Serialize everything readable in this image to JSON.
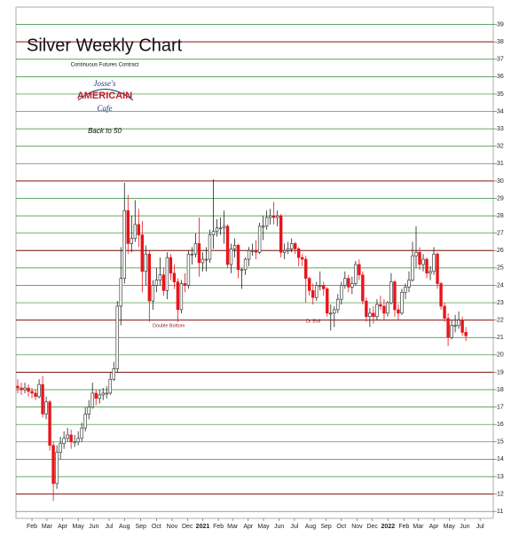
{
  "chart_data": {
    "type": "candlestick",
    "title": "Silver Weekly Chart",
    "subtitle": "Continuous Futures Contract",
    "logo": {
      "line1": "Josse's",
      "line2": "AMERICAIN",
      "line3": "Cafe"
    },
    "note": "Back to 50",
    "annotations": [
      "Double Bottom",
      "Dr Evil"
    ],
    "up_color": "#ffffff",
    "down_color": "#e8141b",
    "grid_color": "#2e8b2e",
    "red_color": "#8b1a1a",
    "grid": true,
    "red_levels": [
      38,
      30,
      26,
      22,
      19,
      12
    ],
    "ylim": [
      10.6,
      40
    ],
    "yticks": [
      11,
      12,
      13,
      14,
      15,
      16,
      17,
      18,
      19,
      20,
      21,
      22,
      23,
      24,
      25,
      26,
      27,
      28,
      29,
      30,
      31,
      32,
      33,
      34,
      35,
      36,
      37,
      38,
      39
    ],
    "xlim": [
      -0.5,
      133.7
    ],
    "xticks": [
      {
        "value": 4,
        "label": "Feb"
      },
      {
        "value": 8.2,
        "label": "Mar"
      },
      {
        "value": 12.6,
        "label": "Apr"
      },
      {
        "value": 17,
        "label": "May"
      },
      {
        "value": 21.4,
        "label": "Jun"
      },
      {
        "value": 25.7,
        "label": "Jul"
      },
      {
        "value": 30,
        "label": "Aug"
      },
      {
        "value": 34.6,
        "label": "Sep"
      },
      {
        "value": 39,
        "label": "Oct"
      },
      {
        "value": 43.4,
        "label": "Nov"
      },
      {
        "value": 47.7,
        "label": "Dec"
      },
      {
        "value": 52,
        "label": "2021"
      },
      {
        "value": 56.4,
        "label": "Feb"
      },
      {
        "value": 60.4,
        "label": "Mar"
      },
      {
        "value": 64.8,
        "label": "Apr"
      },
      {
        "value": 69.1,
        "label": "May"
      },
      {
        "value": 73.5,
        "label": "Jun"
      },
      {
        "value": 77.8,
        "label": "Jul"
      },
      {
        "value": 82.3,
        "label": "Aug"
      },
      {
        "value": 86.7,
        "label": "Sep"
      },
      {
        "value": 91,
        "label": "Oct"
      },
      {
        "value": 95.4,
        "label": "Nov"
      },
      {
        "value": 99.7,
        "label": "Dec"
      },
      {
        "value": 104.1,
        "label": "2022"
      },
      {
        "value": 108.6,
        "label": "Feb"
      },
      {
        "value": 112.6,
        "label": "Mar"
      },
      {
        "value": 117,
        "label": "Apr"
      },
      {
        "value": 121.3,
        "label": "May"
      },
      {
        "value": 125.7,
        "label": "Jun"
      },
      {
        "value": 130,
        "label": "Jul"
      }
    ],
    "ohlc": [
      [
        18.2,
        18.6,
        17.8,
        18.1
      ],
      [
        18.1,
        18.4,
        17.7,
        18.0
      ],
      [
        18.0,
        18.4,
        17.8,
        18.1
      ],
      [
        18.1,
        18.3,
        17.6,
        17.9
      ],
      [
        17.9,
        18.1,
        17.5,
        17.8
      ],
      [
        17.8,
        18.0,
        17.4,
        17.6
      ],
      [
        17.6,
        18.6,
        17.5,
        18.3
      ],
      [
        18.3,
        18.8,
        16.4,
        16.6
      ],
      [
        16.6,
        17.6,
        16.3,
        17.3
      ],
      [
        17.3,
        17.4,
        14.5,
        14.8
      ],
      [
        14.8,
        15.0,
        11.6,
        12.6
      ],
      [
        12.6,
        14.8,
        12.3,
        14.4
      ],
      [
        14.4,
        15.3,
        14.0,
        14.9
      ],
      [
        14.9,
        15.6,
        14.6,
        15.2
      ],
      [
        15.2,
        15.8,
        15.0,
        15.4
      ],
      [
        15.4,
        15.7,
        14.6,
        15.0
      ],
      [
        15.0,
        15.4,
        14.7,
        15.0
      ],
      [
        15.0,
        15.6,
        14.8,
        15.2
      ],
      [
        15.2,
        16.1,
        15.0,
        15.8
      ],
      [
        15.8,
        17.0,
        15.6,
        16.6
      ],
      [
        16.6,
        17.4,
        16.3,
        17.0
      ],
      [
        17.0,
        18.4,
        16.9,
        17.8
      ],
      [
        17.8,
        18.0,
        17.1,
        17.5
      ],
      [
        17.5,
        18.0,
        17.2,
        17.7
      ],
      [
        17.7,
        18.1,
        17.4,
        17.8
      ],
      [
        17.8,
        18.2,
        17.5,
        17.8
      ],
      [
        17.8,
        19.0,
        17.7,
        18.6
      ],
      [
        18.6,
        19.6,
        18.5,
        19.2
      ],
      [
        19.2,
        23.1,
        19.0,
        22.8
      ],
      [
        22.8,
        26.2,
        21.7,
        24.4
      ],
      [
        24.4,
        29.9,
        24.1,
        28.3
      ],
      [
        28.3,
        29.2,
        25.8,
        26.4
      ],
      [
        26.4,
        28.0,
        25.9,
        26.7
      ],
      [
        26.7,
        28.9,
        26.5,
        27.5
      ],
      [
        27.5,
        28.4,
        26.2,
        26.9
      ],
      [
        26.9,
        27.7,
        23.6,
        24.8
      ],
      [
        24.8,
        26.3,
        24.0,
        25.8
      ],
      [
        25.8,
        26.0,
        21.9,
        23.1
      ],
      [
        23.1,
        24.3,
        22.6,
        24.0
      ],
      [
        24.0,
        25.0,
        23.6,
        24.3
      ],
      [
        24.3,
        25.6,
        24.0,
        24.6
      ],
      [
        24.6,
        25.0,
        23.4,
        23.7
      ],
      [
        23.7,
        25.9,
        23.2,
        25.6
      ],
      [
        25.6,
        25.8,
        24.3,
        24.7
      ],
      [
        24.7,
        25.2,
        23.8,
        24.2
      ],
      [
        24.2,
        24.4,
        21.9,
        22.6
      ],
      [
        22.6,
        24.3,
        22.4,
        24.1
      ],
      [
        24.1,
        24.7,
        23.6,
        24.0
      ],
      [
        24.0,
        26.0,
        23.8,
        25.8
      ],
      [
        25.8,
        26.2,
        25.2,
        25.8
      ],
      [
        25.8,
        27.0,
        25.6,
        26.4
      ],
      [
        26.4,
        27.9,
        24.5,
        25.3
      ],
      [
        25.3,
        25.9,
        24.8,
        25.5
      ],
      [
        25.5,
        26.2,
        24.8,
        25.5
      ],
      [
        25.5,
        27.2,
        25.3,
        26.9
      ],
      [
        26.9,
        30.1,
        26.1,
        27.1
      ],
      [
        27.1,
        27.8,
        26.8,
        27.3
      ],
      [
        27.3,
        27.9,
        26.9,
        27.3
      ],
      [
        27.3,
        28.3,
        26.4,
        27.4
      ],
      [
        27.4,
        27.5,
        25.0,
        25.2
      ],
      [
        25.2,
        26.4,
        24.7,
        26.1
      ],
      [
        26.1,
        26.7,
        25.6,
        26.3
      ],
      [
        26.3,
        26.4,
        24.4,
        24.9
      ],
      [
        24.9,
        25.0,
        23.8,
        24.9
      ],
      [
        24.9,
        25.6,
        24.6,
        25.5
      ],
      [
        25.5,
        26.2,
        25.1,
        26.0
      ],
      [
        26.0,
        26.4,
        25.7,
        26.0
      ],
      [
        26.0,
        26.6,
        25.5,
        25.9
      ],
      [
        25.9,
        27.6,
        25.8,
        27.4
      ],
      [
        27.4,
        28.0,
        26.6,
        27.4
      ],
      [
        27.4,
        28.3,
        27.2,
        27.9
      ],
      [
        27.9,
        28.4,
        27.5,
        28.0
      ],
      [
        28.0,
        28.8,
        27.5,
        27.9
      ],
      [
        27.9,
        28.3,
        27.4,
        28.0
      ],
      [
        28.0,
        28.1,
        25.6,
        25.9
      ],
      [
        25.9,
        26.4,
        25.5,
        26.0
      ],
      [
        26.0,
        26.5,
        25.8,
        26.1
      ],
      [
        26.1,
        26.7,
        25.9,
        26.4
      ],
      [
        26.4,
        26.5,
        25.8,
        26.1
      ],
      [
        26.1,
        26.2,
        25.1,
        25.6
      ],
      [
        25.6,
        25.8,
        25.1,
        25.5
      ],
      [
        25.5,
        25.7,
        23.0,
        24.4
      ],
      [
        24.4,
        24.5,
        23.4,
        23.7
      ],
      [
        23.7,
        24.1,
        22.9,
        23.3
      ],
      [
        23.3,
        24.2,
        23.1,
        24.0
      ],
      [
        24.0,
        24.8,
        23.7,
        24.0
      ],
      [
        24.0,
        24.2,
        23.4,
        23.8
      ],
      [
        23.8,
        23.9,
        22.2,
        22.4
      ],
      [
        22.4,
        22.9,
        21.4,
        22.4
      ],
      [
        22.4,
        22.8,
        21.6,
        22.6
      ],
      [
        22.6,
        23.5,
        22.4,
        23.2
      ],
      [
        23.2,
        24.2,
        22.9,
        24.0
      ],
      [
        24.0,
        24.8,
        23.8,
        24.4
      ],
      [
        24.4,
        24.6,
        23.6,
        23.9
      ],
      [
        23.9,
        24.5,
        23.5,
        24.1
      ],
      [
        24.1,
        25.4,
        24.0,
        25.2
      ],
      [
        25.2,
        25.5,
        24.3,
        24.6
      ],
      [
        24.6,
        24.8,
        22.9,
        23.1
      ],
      [
        23.1,
        23.3,
        21.9,
        22.2
      ],
      [
        22.2,
        22.7,
        21.6,
        22.4
      ],
      [
        22.4,
        22.8,
        21.8,
        22.2
      ],
      [
        22.2,
        23.2,
        22.0,
        22.9
      ],
      [
        22.9,
        23.4,
        22.6,
        22.8
      ],
      [
        22.8,
        23.2,
        22.0,
        22.4
      ],
      [
        22.4,
        23.1,
        22.2,
        23.0
      ],
      [
        23.0,
        24.7,
        22.9,
        24.2
      ],
      [
        24.2,
        24.3,
        22.2,
        22.6
      ],
      [
        22.6,
        22.9,
        22.0,
        22.4
      ],
      [
        22.4,
        23.8,
        22.3,
        23.6
      ],
      [
        23.6,
        24.1,
        23.2,
        23.9
      ],
      [
        23.9,
        24.8,
        23.6,
        24.3
      ],
      [
        24.3,
        26.5,
        24.2,
        25.7
      ],
      [
        25.7,
        27.4,
        25.0,
        25.9
      ],
      [
        25.9,
        26.2,
        24.9,
        25.2
      ],
      [
        25.2,
        25.8,
        24.8,
        25.5
      ],
      [
        25.5,
        25.6,
        24.4,
        24.7
      ],
      [
        24.7,
        25.1,
        24.3,
        24.8
      ],
      [
        24.8,
        26.2,
        24.6,
        25.8
      ],
      [
        25.8,
        25.9,
        23.8,
        24.1
      ],
      [
        24.1,
        24.2,
        22.6,
        22.8
      ],
      [
        22.8,
        23.0,
        21.9,
        22.1
      ],
      [
        22.1,
        22.4,
        20.5,
        21.0
      ],
      [
        21.0,
        22.0,
        20.9,
        21.7
      ],
      [
        21.7,
        22.3,
        21.3,
        21.7
      ],
      [
        21.7,
        22.5,
        21.5,
        22.0
      ],
      [
        22.0,
        22.2,
        21.1,
        21.3
      ],
      [
        21.3,
        21.6,
        20.8,
        21.1
      ]
    ]
  }
}
